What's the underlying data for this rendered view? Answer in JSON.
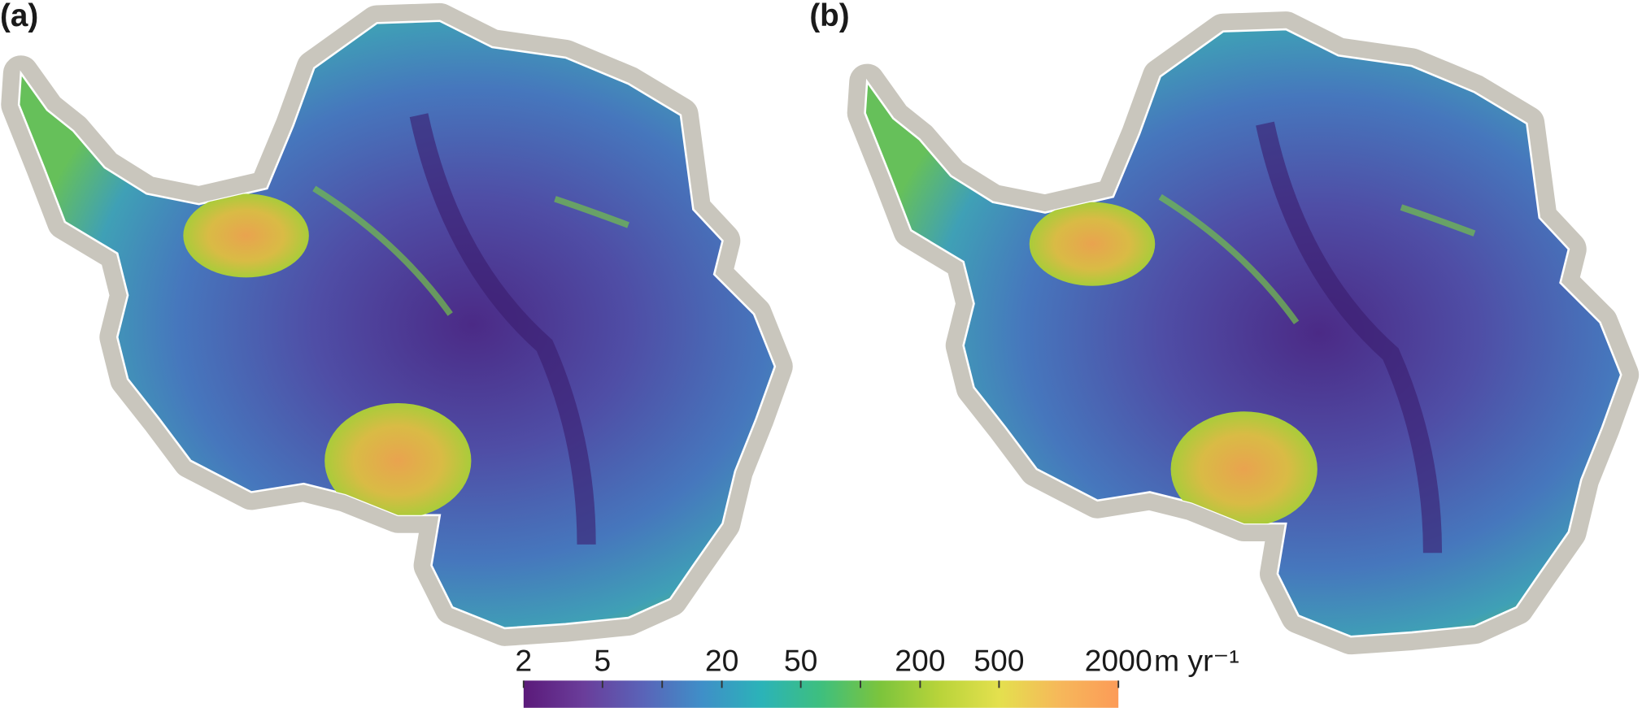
{
  "panels": [
    {
      "label": "(a)"
    },
    {
      "label": "(b)"
    }
  ],
  "colorbar": {
    "scale": "log",
    "lim": [
      2,
      2000
    ],
    "ticks": [
      2,
      5,
      20,
      50,
      200,
      500,
      2000
    ],
    "minor_ticks": [
      10,
      100
    ],
    "unit": "m yr⁻¹",
    "colormap": [
      "#5b1a7a",
      "#6a3d9a",
      "#5a63b8",
      "#3f8fc8",
      "#2bb3b8",
      "#3ebf7e",
      "#7cc43c",
      "#b9d43a",
      "#e4e04e",
      "#f6b85a",
      "#fc9b58"
    ]
  }
}
